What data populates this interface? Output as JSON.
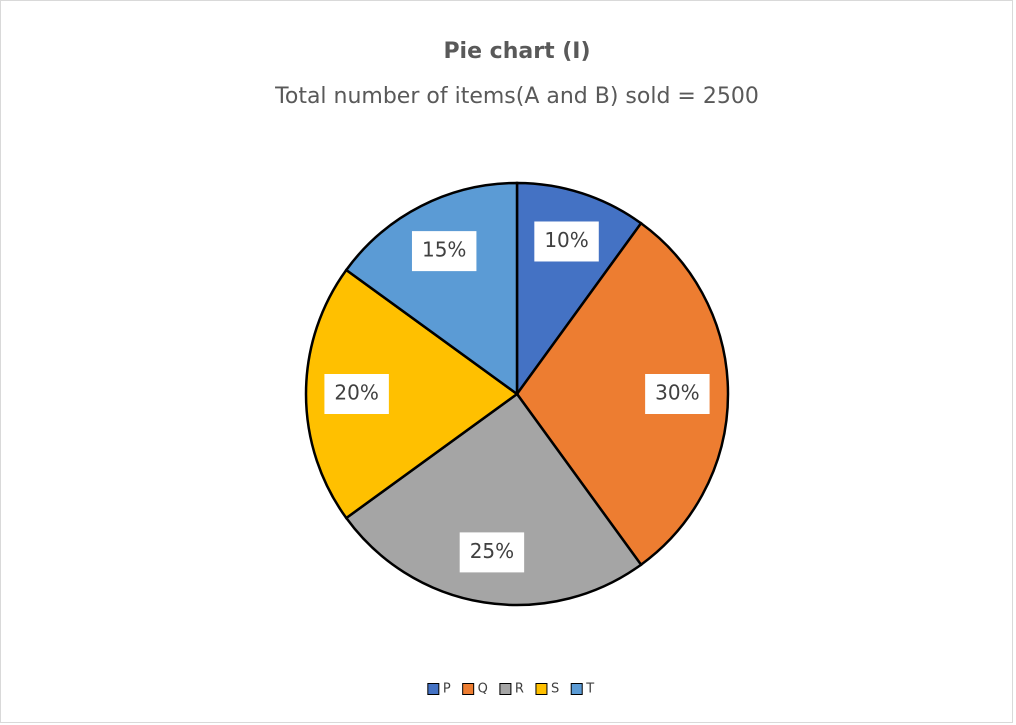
{
  "chart_data": {
    "type": "pie",
    "title": "Pie chart (I)",
    "subtitle": "Total number of items(A and B) sold = 2500",
    "categories": [
      "P",
      "Q",
      "R",
      "S",
      "T"
    ],
    "values": [
      10,
      30,
      25,
      20,
      15
    ],
    "value_labels": [
      "10%",
      "30%",
      "25%",
      "20%",
      "15%"
    ],
    "colors": [
      "#4472c4",
      "#ed7d31",
      "#a5a5a5",
      "#ffc000",
      "#5b9bd5"
    ],
    "legend": "bottom"
  }
}
